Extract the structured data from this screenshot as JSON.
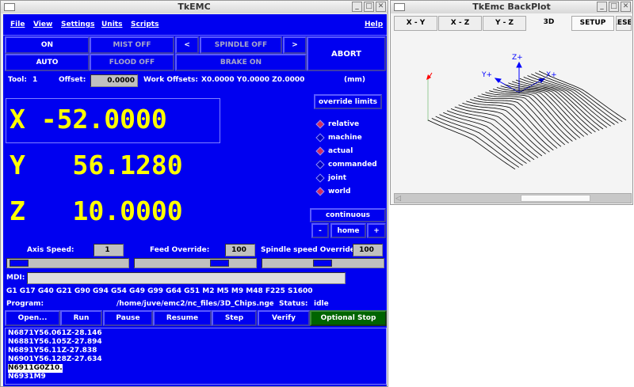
{
  "main_window": {
    "title": "TkEMC",
    "menu": [
      "File",
      "View",
      "Settings",
      "Units",
      "Scripts",
      "Help"
    ],
    "buttons": {
      "on": "ON",
      "auto": "AUTO",
      "mist": "MIST OFF",
      "flood": "FLOOD OFF",
      "spindle_dec": "<",
      "spindle": "SPINDLE OFF",
      "spindle_inc": ">",
      "brake": "BRAKE ON",
      "abort": "ABORT"
    },
    "tool_label": "Tool:",
    "tool": "1",
    "offset_label": "Offset:",
    "offset": "0.0000",
    "work_offsets_label": "Work Offsets:",
    "work_offsets": "X0.0000 Y0.0000 Z0.0000",
    "units": "(mm)",
    "dro": [
      {
        "axis": "X",
        "value": "-52.0000"
      },
      {
        "axis": "Y",
        "value": "56.1280"
      },
      {
        "axis": "Z",
        "value": "10.0000"
      }
    ],
    "override_limits": "override limits",
    "radios": [
      {
        "label": "relative",
        "selected": true
      },
      {
        "label": "machine",
        "selected": false
      },
      {
        "label": "actual",
        "selected": true
      },
      {
        "label": "commanded",
        "selected": false
      },
      {
        "label": "joint",
        "selected": false
      },
      {
        "label": "world",
        "selected": true
      }
    ],
    "jog_mode": "continuous",
    "jog_minus": "-",
    "home": "home",
    "jog_plus": "+",
    "axis_speed_label": "Axis Speed:",
    "axis_speed": "1",
    "feed_override_label": "Feed Override:",
    "feed_override": "100",
    "spindle_override_label": "Spindle speed Override:",
    "spindle_override": "100",
    "sliders": {
      "axis_speed": 0.02,
      "feed_override": 0.75,
      "spindle_override": 0.5
    },
    "mdi_label": "MDI:",
    "mdi_value": "",
    "modal_codes": "G1 G17 G40 G21 G90 G94 G54 G49 G99 G64 G51 M2 M5 M9 M48 F225 S1600",
    "program_label": "Program:",
    "program_path": "/home/juve/emc2/nc_files/3D_Chips.ngc",
    "status_label": "-  Status:",
    "status": "idle",
    "program_buttons": [
      "Open...",
      "Run",
      "Pause",
      "Resume",
      "Step",
      "Verify",
      "Optional Stop"
    ],
    "gcode_lines": [
      "N6871Y56.061Z-28.146",
      "N6881Y56.105Z-27.894",
      "N6891Y56.11Z-27.838",
      "N6901Y56.128Z-27.634",
      "N6911G0Z10.",
      "N6931M9"
    ],
    "highlighted_line": 4,
    "colors": {
      "background": "#0000f0",
      "dro": "#ffff00",
      "optional_stop": "#006400"
    }
  },
  "backplot_window": {
    "title": "TkEmc BackPlot",
    "tabs": [
      "X - Y",
      "X - Z",
      "Y - Z",
      "3D",
      "SETUP",
      "RESET"
    ],
    "active_tab": "3D",
    "axis_labels": {
      "z": "Z+",
      "y": "Y+",
      "x": "X+"
    }
  }
}
